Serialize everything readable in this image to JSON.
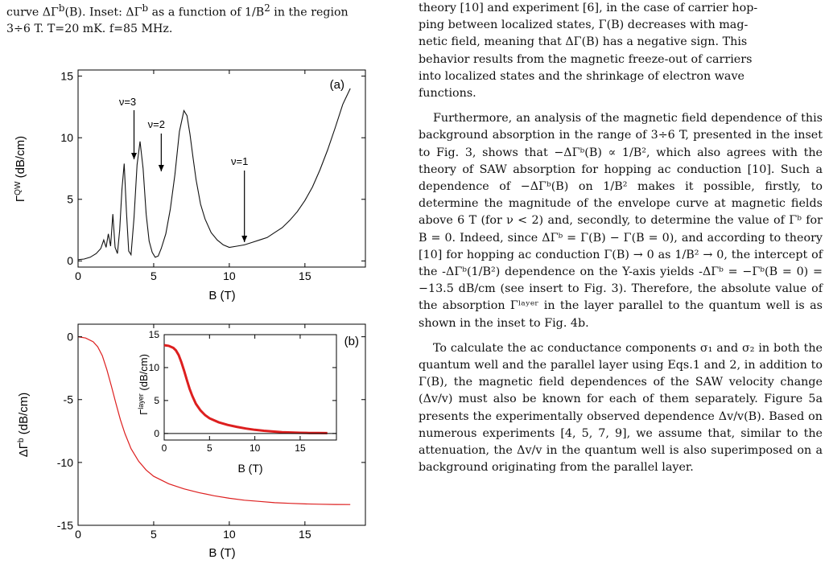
{
  "caption": {
    "line1": "curve ΔΓ",
    "line1_sup": "b",
    "line1_b": "(B). Inset: ΔΓ",
    "line1_sup2": "b",
    "line1_c": " as a function of 1/B",
    "line1_sup3": "2",
    "line1_d": " in the region",
    "line2": "3÷6 T. T=20 mK. f=85 MHz."
  },
  "text": {
    "p1_l1": "theory [10] and experiment [6], in the case of carrier hop-",
    "p1_l2": "ping between localized states, Γ(B) decreases with mag-",
    "p1_l3": "netic field, meaning that ΔΓ(B) has a negative sign. This",
    "p1_l4": "behavior results from the magnetic freeze-out of carriers",
    "p1_l5": "into localized states and the shrinkage of electron wave",
    "p1_l6": "functions.",
    "p2": "Furthermore, an analysis of the magnetic field dependence of this background absorption in the range of 3÷6 T, presented in the inset to Fig. 3, shows that −ΔΓᵇ(B) ∝ 1/B², which also agrees with the theory of SAW absorption for hopping ac conduction [10]. Such a dependence of −ΔΓᵇ(B) on 1/B² makes it possible, firstly, to determine the magnitude of the envelope curve at magnetic fields above 6 T (for ν < 2) and, secondly, to determine the value of Γᵇ for B = 0. Indeed, since ΔΓᵇ = Γ(B) − Γ(B = 0), and according to theory [10] for hopping ac conduction Γ(B) → 0 as 1/B² → 0, the intercept of the -ΔΓᵇ(1/B²) dependence on the Y-axis yields -ΔΓᵇ = −Γᵇ(B = 0) = −13.5 dB/cm (see insert to Fig. 3). Therefore, the absolute value of the absorption Γˡᵃʸᵉʳ in the layer parallel to the quantum well is as shown in the inset to Fig. 4b.",
    "p3": "To calculate the ac conductance components σ₁ and σ₂ in both the quantum well and the parallel layer using Eqs.1 and 2, in addition to Γ(B), the magnetic field dependences of the SAW velocity change (Δv/v) must also be known for each of them separately. Figure 5a presents the experimentally observed dependence Δv/v(B). Based on numerous experiments [4, 5, 7, 9], we assume that, similar to the attenuation, the Δv/v in the quantum well is also superimposed on a background originating from the parallel layer."
  },
  "chart_data": [
    {
      "type": "line",
      "panel_label": "(a)",
      "xlabel": "B (T)",
      "ylabel": "Γ^QW (dB/cm)",
      "xlim": [
        0,
        19
      ],
      "ylim": [
        -0.5,
        15.5
      ],
      "xticks": [
        0,
        5,
        10,
        15
      ],
      "yticks": [
        0,
        5,
        10,
        15
      ],
      "series": [
        {
          "x": [
            0.0,
            0.4,
            0.8,
            1.2,
            1.5,
            1.7,
            1.85,
            2.0,
            2.15,
            2.3,
            2.45,
            2.6,
            2.75,
            2.9,
            3.05,
            3.2,
            3.35,
            3.5,
            3.7,
            3.9,
            4.1,
            4.3,
            4.5,
            4.7,
            4.9,
            5.1,
            5.3,
            5.5,
            5.8,
            6.1,
            6.4,
            6.7,
            7.0,
            7.2,
            7.4,
            7.6,
            7.8,
            8.1,
            8.4,
            8.8,
            9.2,
            9.6,
            10.0,
            10.5,
            11.0,
            11.5,
            12.0,
            12.5,
            13.0,
            13.5,
            14.0,
            14.5,
            15.0,
            15.5,
            16.0,
            16.5,
            17.0,
            17.5,
            18.0
          ],
          "y": [
            0.1,
            0.15,
            0.3,
            0.6,
            1.0,
            1.7,
            1.1,
            2.2,
            1.2,
            3.8,
            1.1,
            0.6,
            2.5,
            5.8,
            7.9,
            4.0,
            0.8,
            0.5,
            3.5,
            7.8,
            9.7,
            7.5,
            3.8,
            1.6,
            0.7,
            0.3,
            0.4,
            1.0,
            2.2,
            4.2,
            7.0,
            10.5,
            12.2,
            11.8,
            10.3,
            8.4,
            6.6,
            4.6,
            3.4,
            2.3,
            1.7,
            1.3,
            1.1,
            1.2,
            1.3,
            1.5,
            1.7,
            1.9,
            2.3,
            2.7,
            3.3,
            4.0,
            4.9,
            6.0,
            7.4,
            9.0,
            10.8,
            12.7,
            14.0
          ]
        }
      ],
      "annotations": [
        {
          "text": "ν=3",
          "x": 3.7
        },
        {
          "text": "ν=2",
          "x": 5.5
        },
        {
          "text": "ν=1",
          "x": 11.0
        }
      ]
    },
    {
      "type": "line",
      "panel_label": "(b)",
      "xlabel": "B (T)",
      "ylabel": "ΔΓ^b (dB/cm)",
      "xlim": [
        0,
        19
      ],
      "ylim": [
        -15,
        1
      ],
      "xticks": [
        0,
        5,
        10,
        15
      ],
      "yticks": [
        0,
        -5,
        -10,
        -15
      ],
      "color": "#dd1f1f",
      "series": [
        {
          "x": [
            0.0,
            0.5,
            1.0,
            1.3,
            1.6,
            1.9,
            2.2,
            2.5,
            2.8,
            3.1,
            3.5,
            4.0,
            4.5,
            5.0,
            6.0,
            7.0,
            8.0,
            9.0,
            10.0,
            11.0,
            12.0,
            13.0,
            14.0,
            15.0,
            16.0,
            17.0,
            18.0
          ],
          "y": [
            0.0,
            -0.1,
            -0.4,
            -0.8,
            -1.5,
            -2.6,
            -3.9,
            -5.3,
            -6.6,
            -7.7,
            -8.9,
            -9.9,
            -10.6,
            -11.1,
            -11.7,
            -12.1,
            -12.4,
            -12.65,
            -12.85,
            -13.0,
            -13.1,
            -13.2,
            -13.25,
            -13.3,
            -13.32,
            -13.34,
            -13.35
          ]
        }
      ]
    },
    {
      "type": "line",
      "panel_label": "inset",
      "xlabel": "B (T)",
      "ylabel": "Γ^layer (dB/cm)",
      "xlim": [
        0,
        19
      ],
      "ylim": [
        -1,
        15
      ],
      "xticks": [
        0,
        5,
        10,
        15
      ],
      "yticks": [
        0,
        5,
        10,
        15
      ],
      "color": "#dd1f1f",
      "series": [
        {
          "x": [
            0.0,
            0.5,
            1.0,
            1.3,
            1.6,
            1.9,
            2.2,
            2.5,
            2.8,
            3.1,
            3.5,
            4.0,
            4.5,
            5.0,
            6.0,
            7.0,
            8.0,
            9.0,
            10.0,
            11.0,
            12.0,
            13.0,
            14.0,
            15.0,
            16.0,
            17.0,
            18.0
          ],
          "y": [
            13.4,
            13.3,
            13.0,
            12.6,
            11.9,
            10.8,
            9.5,
            8.1,
            6.8,
            5.7,
            4.5,
            3.5,
            2.8,
            2.3,
            1.7,
            1.3,
            1.0,
            0.75,
            0.55,
            0.4,
            0.3,
            0.2,
            0.15,
            0.1,
            0.08,
            0.06,
            0.05
          ]
        }
      ]
    }
  ]
}
